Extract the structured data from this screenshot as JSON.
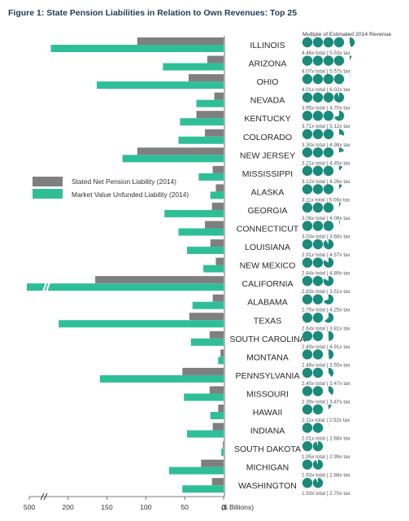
{
  "title": "Figure 1: State Pension Liabilities in Relation to Own Revenues: Top 25",
  "multiple_header": "Multiple of Estimated 2014 Revenue",
  "colors": {
    "stated": "#7f7f7f",
    "market": "#2fbf98",
    "circle": "#1a8a7b",
    "axis": "#555555"
  },
  "chart_data": {
    "type": "bar",
    "orientation": "horizontal",
    "title": "Figure 1: State Pension Liabilities in Relation to Own Revenues: Top 25",
    "xlabel": "($ Billions)",
    "xlim": [
      0,
      500
    ],
    "x_axis_break": [
      250,
      450
    ],
    "x_ticks": [
      {
        "value": 500,
        "label": "500"
      },
      {
        "value": 200,
        "label": "200"
      },
      {
        "value": 150,
        "label": "150"
      },
      {
        "value": 100,
        "label": "100"
      },
      {
        "value": 50,
        "label": "50"
      },
      {
        "value": 0,
        "label": "0"
      }
    ],
    "legend_position": "left",
    "categories": [
      "ILLINOIS",
      "ARIZONA",
      "OHIO",
      "NEVADA",
      "KENTUCKY",
      "COLORADO",
      "NEW JERSEY",
      "MISSISSIPPI",
      "ALASKA",
      "GEORGIA",
      "CONNECTICUT",
      "LOUISIANA",
      "NEW MEXICO",
      "CALIFORNIA",
      "ALABAMA",
      "TEXAS",
      "SOUTH CAROLINA",
      "MONTANA",
      "PENNSYLVANIA",
      "MISSOURI",
      "HAWAII",
      "INDIANA",
      "SOUTH DAKOTA",
      "MICHIGAN",
      "WASHINGTON"
    ],
    "series": [
      {
        "name": "Stated Net Pension Liability (2014)",
        "values": [
          111,
          21,
          45,
          12,
          35,
          24,
          111,
          14,
          10,
          15,
          24,
          17,
          10,
          165,
          14,
          44,
          18,
          4,
          53,
          18,
          7,
          14,
          1,
          29,
          15
        ]
      },
      {
        "name": "Market Value Unfunded Liability (2014)",
        "values": [
          222,
          78,
          163,
          35,
          56,
          58,
          130,
          32,
          17,
          76,
          58,
          47,
          26,
          530,
          40,
          212,
          42,
          7,
          159,
          51,
          17,
          47,
          3,
          70,
          53
        ]
      }
    ],
    "multiples": {
      "total": [
        4.46,
        4.07,
        4.01,
        3.95,
        3.71,
        3.3,
        3.21,
        3.12,
        3.11,
        3.06,
        3.03,
        2.91,
        2.84,
        2.83,
        2.7,
        2.64,
        2.49,
        2.48,
        2.4,
        2.39,
        2.11,
        2.01,
        1.95,
        1.93,
        1.93
      ],
      "tax": [
        5.53,
        5.57,
        6.02,
        4.7,
        5.12,
        4.98,
        4.45,
        4.26,
        5.06,
        4.08,
        3.68,
        4.57,
        4.89,
        3.51,
        4.25,
        3.81,
        4.91,
        3.55,
        3.47,
        3.47,
        2.92,
        2.68,
        2.99,
        2.88,
        2.7
      ],
      "labels": [
        "4.46x total | 5.53x tax",
        "4.07x total | 5.57x tax",
        "4.01x total | 6.02x tax",
        "3.95x total | 4.70x tax",
        "3.71x total | 5.12x tax",
        "3.30x total | 4.98x tax",
        "3.21x total | 4.45x tax",
        "3.12x total | 4.26x tax",
        "3.11x total | 5.06x tax",
        "3.06x total | 4.08x tax",
        "3.03x total | 3.68x tax",
        "2.91x total | 4.57x tax",
        "2.84x total | 4.89x tax",
        "2.83x total | 3.51x tax",
        "2.70x total | 4.25x tax",
        "2.64x total | 3.81x tax",
        "2.49x total | 4.91x tax",
        "2.48x total | 3.55x tax",
        "2.40x total | 3.47x tax",
        "2.39x total | 3.47x tax",
        "2.11x total | 2.92x tax",
        "2.01x total | 2.68x tax",
        "1.95x total | 2.99x tax",
        "1.93x total | 2.88x tax",
        "1.93x total | 2.70x tax"
      ]
    }
  }
}
